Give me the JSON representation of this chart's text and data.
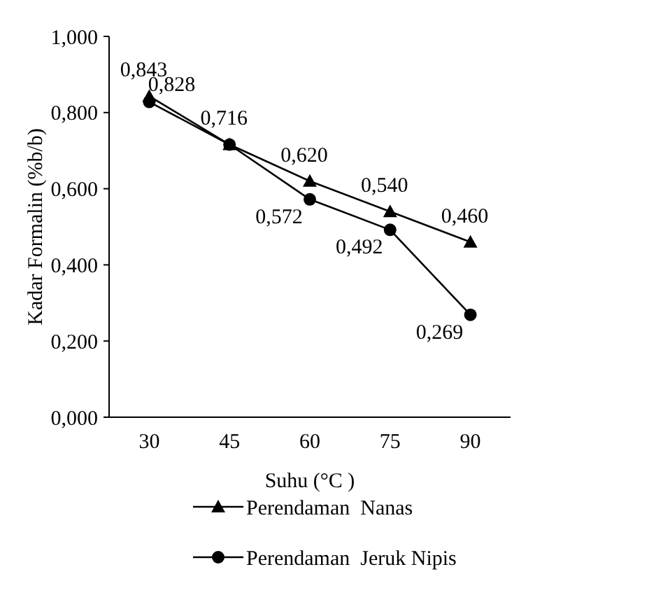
{
  "chart_data": {
    "type": "line",
    "xlabel": "Suhu (°C )",
    "ylabel": "Kadar Formalin (%b/b)",
    "categories": [
      "30",
      "45",
      "60",
      "75",
      "90"
    ],
    "ylim": [
      0,
      1
    ],
    "yticks": [
      {
        "value": 0,
        "label": "0,000"
      },
      {
        "value": 0.2,
        "label": "0,200"
      },
      {
        "value": 0.4,
        "label": "0,400"
      },
      {
        "value": 0.6,
        "label": "0,600"
      },
      {
        "value": 0.8,
        "label": "0,800"
      },
      {
        "value": 1,
        "label": "1,000"
      }
    ],
    "grid": false,
    "legend": "bottom",
    "series": [
      {
        "name": "Perendaman  Nanas",
        "color": "#000000",
        "marker": "triangle",
        "values": [
          0.843,
          0.716,
          0.62,
          0.54,
          0.46
        ],
        "value_labels": [
          "0,843",
          "0,716",
          "0,620",
          "0,540",
          "0,460"
        ]
      },
      {
        "name": "Perendaman  Jeruk Nipis",
        "color": "#000000",
        "marker": "circle",
        "values": [
          0.828,
          0.716,
          0.572,
          0.492,
          0.269
        ],
        "value_labels": [
          "0,828",
          null,
          "0,572",
          "0,492",
          "0,269"
        ]
      }
    ]
  }
}
